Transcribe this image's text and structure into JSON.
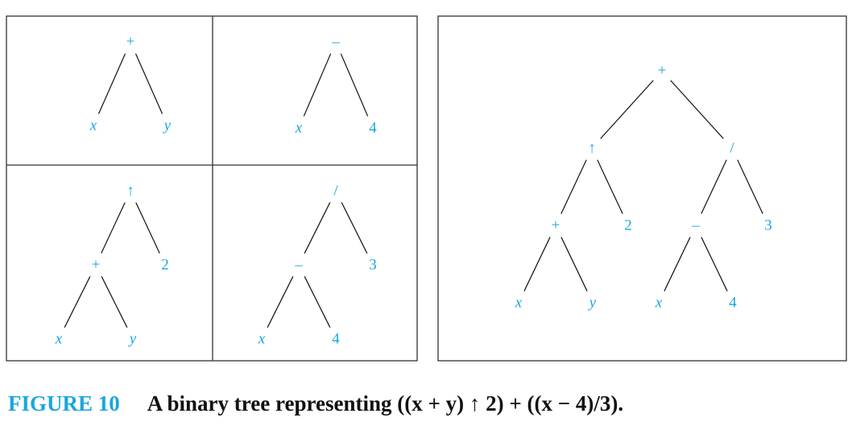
{
  "figure": {
    "label": "FIGURE 10",
    "caption": "A binary tree representing ((x + y) ↑ 2) + ((x − 4)/3)."
  },
  "colors": {
    "node": "#1aa6de",
    "edge": "#111111",
    "frame": "#333333",
    "label": "#1aa6de"
  },
  "panels": [
    {
      "id": "panel-x-plus-y",
      "tree": {
        "label": "+",
        "children": [
          {
            "label": "x"
          },
          {
            "label": "y"
          }
        ]
      }
    },
    {
      "id": "panel-x-minus-4",
      "tree": {
        "label": "–",
        "children": [
          {
            "label": "x"
          },
          {
            "label": "4"
          }
        ]
      }
    },
    {
      "id": "panel-power",
      "tree": {
        "label": "↑",
        "children": [
          {
            "label": "+",
            "children": [
              {
                "label": "x"
              },
              {
                "label": "y"
              }
            ]
          },
          {
            "label": "2"
          }
        ]
      }
    },
    {
      "id": "panel-divide",
      "tree": {
        "label": "/",
        "children": [
          {
            "label": "–",
            "children": [
              {
                "label": "x"
              },
              {
                "label": "4"
              }
            ]
          },
          {
            "label": "3"
          }
        ]
      }
    },
    {
      "id": "panel-full-tree",
      "tree": {
        "label": "+",
        "children": [
          {
            "label": "↑",
            "children": [
              {
                "label": "+",
                "children": [
                  {
                    "label": "x"
                  },
                  {
                    "label": "y"
                  }
                ]
              },
              {
                "label": "2"
              }
            ]
          },
          {
            "label": "/",
            "children": [
              {
                "label": "–",
                "children": [
                  {
                    "label": "x"
                  },
                  {
                    "label": "4"
                  }
                ]
              },
              {
                "label": "3"
              }
            ]
          }
        ]
      }
    }
  ]
}
